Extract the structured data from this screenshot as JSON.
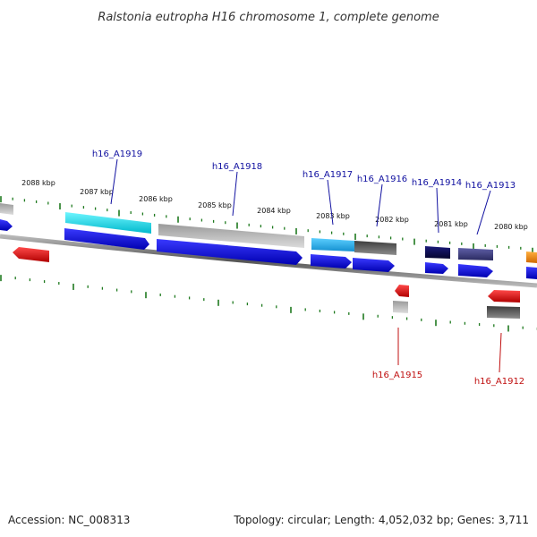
{
  "title": "Ralstonia eutropha H16 chromosome 1, complete genome",
  "footer": {
    "accession": "Accession: NC_008313",
    "summary": "Topology: circular; Length: 4,052,032 bp; Genes: 3,711"
  },
  "colors": {
    "label_top": "#1010a0",
    "label_bottom": "#c01010",
    "tick": "#1f7a1f",
    "backbone": "#777777",
    "cds_blue": "#0000ee",
    "cds_red": "#ee0000",
    "cds_cyan": "#00d8e8",
    "cds_gray": "#aaaaaa",
    "cds_dark_gray": "#555555",
    "cds_navy": "#101060",
    "cds_slate": "#404080",
    "cds_orange": "#ff8c00"
  },
  "scale_labels": [
    "2088 kbp",
    "2087 kbp",
    "2086 kbp",
    "2085 kbp",
    "2084 kbp",
    "2083 kbp",
    "2082 kbp",
    "2081 kbp",
    "2080 kbp"
  ],
  "gene_labels_top": [
    "h16_A1919",
    "h16_A1918",
    "h16_A1917",
    "h16_A1916",
    "h16_A1914",
    "h16_A1913"
  ],
  "gene_labels_bottom": [
    "h16_A1915",
    "h16_A1912"
  ]
}
